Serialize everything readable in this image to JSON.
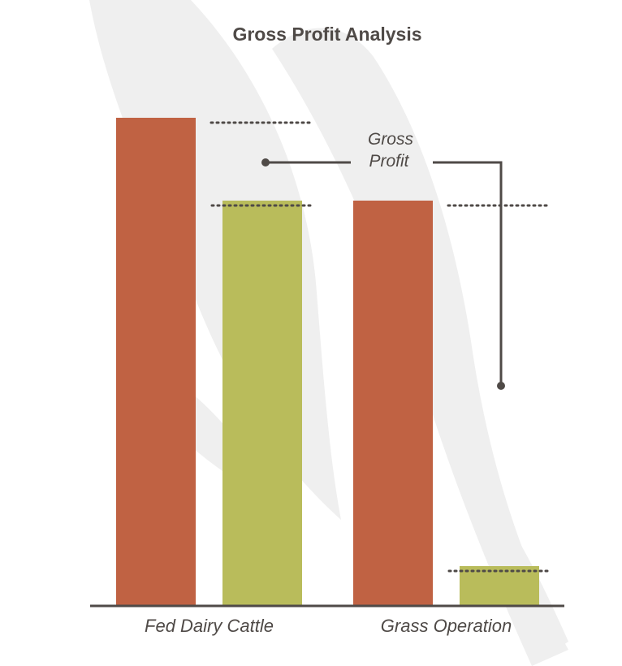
{
  "chart_data": {
    "type": "bar",
    "title": "Gross Profit Analysis",
    "categories": [
      "Fed Dairy Cattle",
      "Grass Operation"
    ],
    "series": [
      {
        "values": [
          100,
          83
        ]
      },
      {
        "values": [
          83,
          8
        ]
      }
    ],
    "ylim": [
      0,
      100
    ],
    "grid": false,
    "legend": "none",
    "annotation": "Gross Profit",
    "annotation_lines": [
      "Gross",
      "Profit"
    ],
    "colors": {
      "series": [
        "#c06243",
        "#b9bc5b"
      ],
      "axis": "#4f4a47",
      "watermark": "#efefef",
      "text": "#4f4a47"
    }
  }
}
